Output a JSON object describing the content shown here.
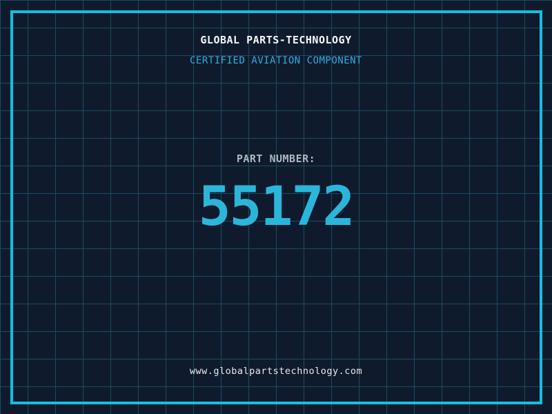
{
  "theme": {
    "background_color": "#0f1b2d",
    "grid_line_color": "#1c4a64",
    "frame_color": "#14bfe2",
    "title_color": "#f5f7f8",
    "subtitle_color": "#2fadde",
    "label_color": "#aeb7c1",
    "number_color": "#2cb5da",
    "url_color": "#e8eaed"
  },
  "header": {
    "title": "GLOBAL PARTS-TECHNOLOGY",
    "subtitle": "CERTIFIED AVIATION COMPONENT"
  },
  "part": {
    "label": "PART NUMBER:",
    "number": "55172"
  },
  "footer": {
    "url": "www.globalpartstechnology.com"
  }
}
